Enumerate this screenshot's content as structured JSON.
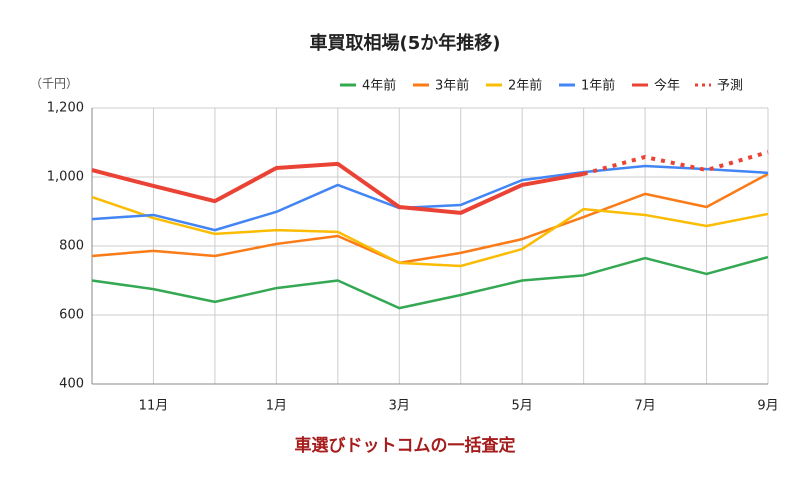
{
  "chart_data": {
    "type": "line",
    "title": "車買取相場(5か年推移)",
    "ylabel": "（千円）",
    "footer": "車選びドットコムの一括査定",
    "categories": [
      null,
      "11月",
      null,
      "1月",
      null,
      "3月",
      null,
      "5月",
      null,
      "7月",
      null,
      "9月"
    ],
    "series": [
      {
        "name": "4年前",
        "color": "#34a853",
        "values": [
          700,
          675,
          638,
          678,
          700,
          620,
          658,
          700,
          715,
          765,
          719,
          768
        ]
      },
      {
        "name": "3年前",
        "color": "#fa7b17",
        "values": [
          771,
          786,
          771,
          806,
          829,
          751,
          780,
          820,
          884,
          951,
          913,
          1009
        ]
      },
      {
        "name": "2年前",
        "color": "#fbbc04",
        "values": [
          942,
          881,
          835,
          846,
          841,
          751,
          742,
          791,
          907,
          890,
          858,
          893
        ]
      },
      {
        "name": "1年前",
        "color": "#4285f4",
        "values": [
          878,
          890,
          846,
          899,
          977,
          910,
          919,
          991,
          1014,
          1032,
          1023,
          1012
        ]
      },
      {
        "name": "今年",
        "color": "#ea4335",
        "width": 4,
        "values": [
          1020,
          974,
          930,
          1026,
          1038,
          913,
          896,
          977,
          1009,
          null,
          null,
          null
        ]
      },
      {
        "name": "予測",
        "color": "#ea4335",
        "width": 4,
        "style": "dotted",
        "values": [
          null,
          null,
          null,
          null,
          null,
          null,
          null,
          null,
          1009,
          1058,
          1020,
          1072
        ]
      }
    ],
    "ylim": [
      400,
      1200
    ],
    "yticks": [
      400,
      600,
      800,
      {
        "value": 1000,
        "label": "1,000"
      },
      {
        "value": 1200,
        "label": "1,200"
      }
    ],
    "grid": true,
    "legend": "top-right"
  }
}
